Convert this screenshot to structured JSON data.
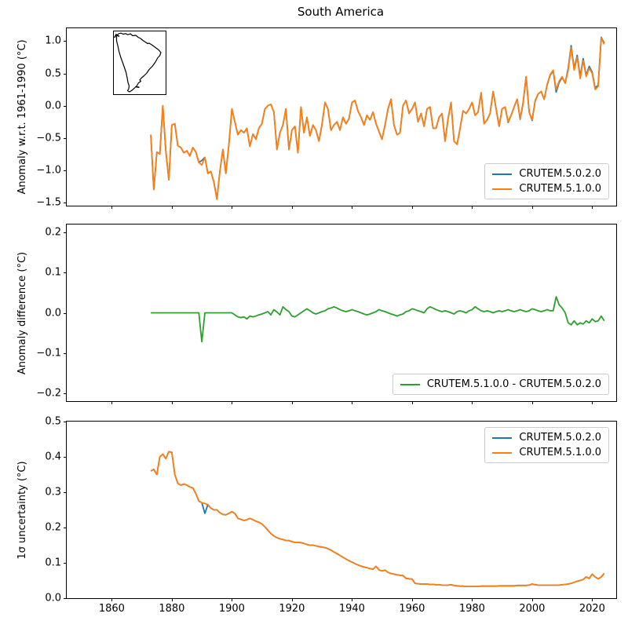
{
  "title": "South America",
  "chart_data": {
    "type": "line",
    "title": "South America",
    "x_years": {
      "start": 1873,
      "end": 2024,
      "step": 1
    },
    "xlim": [
      1845,
      2028
    ],
    "xticks": [
      1860,
      1880,
      1900,
      1920,
      1940,
      1960,
      1980,
      2000,
      2020
    ],
    "xtick_labels": [
      "1860",
      "1880",
      "1900",
      "1920",
      "1940",
      "1960",
      "1980",
      "2000",
      "2020"
    ],
    "grid": false,
    "panels": [
      {
        "ylabel": "Anomaly w.r.t. 1961-1990 (°C)",
        "ylim": [
          -1.55,
          1.2
        ],
        "yticks": [
          1.0,
          0.5,
          0.0,
          -0.5,
          -1.0,
          -1.5
        ],
        "ytick_labels": [
          "1.0",
          "0.5",
          "0.0",
          "−0.5",
          "−1.0",
          "−1.5"
        ],
        "show_xtick_labels": false,
        "legend": {
          "position": "lower-right",
          "entries": [
            {
              "label": "CRUTEM.5.0.2.0",
              "color": "#1f77b4"
            },
            {
              "label": "CRUTEM.5.1.0.0",
              "color": "#ff7f0e"
            }
          ]
        },
        "series": [
          {
            "key": "anomaly_crutem_5_0_2_0",
            "color": "#1f77b4"
          },
          {
            "key": "anomaly_crutem_5_1_0_0",
            "color": "#ff7f0e"
          }
        ]
      },
      {
        "ylabel": "Anomaly difference (°C)",
        "ylim": [
          -0.22,
          0.22
        ],
        "yticks": [
          0.2,
          0.1,
          0.0,
          -0.1,
          -0.2
        ],
        "ytick_labels": [
          "0.2",
          "0.1",
          "0.0",
          "−0.1",
          "−0.2"
        ],
        "show_xtick_labels": false,
        "legend": {
          "position": "lower-right",
          "entries": [
            {
              "label": "CRUTEM.5.1.0.0 - CRUTEM.5.0.2.0",
              "color": "#2ca02c"
            }
          ]
        },
        "series": [
          {
            "key": "difference_5_1_minus_5_0_2",
            "color": "#2ca02c"
          }
        ]
      },
      {
        "ylabel": "1σ uncertainty (°C)",
        "ylim": [
          0.0,
          0.5
        ],
        "yticks": [
          0.5,
          0.4,
          0.3,
          0.2,
          0.1,
          0.0
        ],
        "ytick_labels": [
          "0.5",
          "0.4",
          "0.3",
          "0.2",
          "0.1",
          "0.0"
        ],
        "show_xtick_labels": true,
        "legend": {
          "position": "upper-right",
          "entries": [
            {
              "label": "CRUTEM.5.0.2.0",
              "color": "#1f77b4"
            },
            {
              "label": "CRUTEM.5.1.0.0",
              "color": "#ff7f0e"
            }
          ]
        },
        "series": [
          {
            "key": "uncertainty_crutem_5_0_2_0",
            "color": "#1f77b4"
          },
          {
            "key": "uncertainty_crutem_5_1_0_0",
            "color": "#ff7f0e"
          }
        ]
      }
    ],
    "values": {
      "anomaly_crutem_5_0_2_0": [
        -0.45,
        -1.3,
        -0.72,
        -0.75,
        0.0,
        -0.7,
        -1.15,
        -0.3,
        -0.28,
        -0.62,
        -0.65,
        -0.73,
        -0.7,
        -0.78,
        -0.65,
        -0.72,
        -0.88,
        -0.85,
        -0.8,
        -1.05,
        -1.02,
        -1.18,
        -1.45,
        -1.02,
        -0.68,
        -1.05,
        -0.6,
        -0.05,
        -0.25,
        -0.45,
        -0.38,
        -0.42,
        -0.35,
        -0.63,
        -0.44,
        -0.52,
        -0.35,
        -0.28,
        -0.05,
        0.0,
        0.02,
        -0.1,
        -0.68,
        -0.42,
        -0.3,
        -0.05,
        -0.68,
        -0.38,
        -0.32,
        -0.73,
        -0.02,
        -0.42,
        -0.18,
        -0.47,
        -0.3,
        -0.38,
        -0.55,
        -0.3,
        0.05,
        -0.05,
        -0.38,
        -0.3,
        -0.25,
        -0.38,
        -0.18,
        -0.28,
        -0.2,
        0.05,
        0.08,
        -0.08,
        -0.18,
        -0.3,
        -0.15,
        -0.22,
        -0.1,
        -0.28,
        -0.4,
        -0.52,
        -0.3,
        -0.05,
        0.1,
        -0.3,
        -0.45,
        -0.42,
        0.0,
        0.08,
        -0.12,
        -0.05,
        0.05,
        -0.25,
        -0.12,
        -0.32,
        -0.05,
        -0.02,
        -0.35,
        -0.35,
        -0.18,
        -0.12,
        -0.55,
        -0.2,
        0.05,
        -0.55,
        -0.6,
        -0.35,
        -0.08,
        -0.12,
        -0.05,
        0.05,
        -0.15,
        -0.1,
        0.2,
        -0.28,
        -0.22,
        -0.12,
        0.22,
        -0.05,
        -0.32,
        -0.05,
        -0.02,
        -0.26,
        -0.15,
        -0.02,
        0.1,
        -0.21,
        0.04,
        0.45,
        -0.1,
        -0.23,
        0.07,
        0.18,
        0.22,
        0.1,
        0.32,
        0.47,
        0.54,
        0.21,
        0.36,
        0.44,
        0.35,
        0.58,
        0.93,
        0.57,
        0.78,
        0.45,
        0.73,
        0.47,
        0.61,
        0.52,
        0.27,
        0.32,
        1.06,
        0.97
      ],
      "anomaly_crutem_5_1_0_0": [
        -0.45,
        -1.3,
        -0.72,
        -0.75,
        0.0,
        -0.7,
        -1.15,
        -0.3,
        -0.28,
        -0.62,
        -0.65,
        -0.73,
        -0.7,
        -0.78,
        -0.65,
        -0.72,
        -0.88,
        -0.92,
        -0.8,
        -1.05,
        -1.02,
        -1.18,
        -1.45,
        -1.02,
        -0.68,
        -1.05,
        -0.6,
        -0.05,
        -0.25,
        -0.45,
        -0.38,
        -0.42,
        -0.35,
        -0.63,
        -0.44,
        -0.52,
        -0.35,
        -0.28,
        -0.05,
        0.0,
        0.02,
        -0.1,
        -0.68,
        -0.42,
        -0.3,
        -0.05,
        -0.68,
        -0.38,
        -0.32,
        -0.73,
        -0.02,
        -0.42,
        -0.18,
        -0.47,
        -0.3,
        -0.38,
        -0.55,
        -0.3,
        0.05,
        -0.05,
        -0.38,
        -0.3,
        -0.25,
        -0.38,
        -0.18,
        -0.28,
        -0.2,
        0.05,
        0.08,
        -0.08,
        -0.18,
        -0.3,
        -0.15,
        -0.22,
        -0.1,
        -0.28,
        -0.4,
        -0.52,
        -0.3,
        -0.05,
        0.1,
        -0.3,
        -0.45,
        -0.42,
        0.0,
        0.08,
        -0.12,
        -0.05,
        0.05,
        -0.25,
        -0.12,
        -0.32,
        -0.05,
        -0.02,
        -0.35,
        -0.35,
        -0.18,
        -0.12,
        -0.55,
        -0.2,
        0.05,
        -0.55,
        -0.6,
        -0.35,
        -0.08,
        -0.12,
        -0.05,
        0.05,
        -0.15,
        -0.1,
        0.2,
        -0.28,
        -0.22,
        -0.12,
        0.22,
        -0.05,
        -0.32,
        -0.05,
        -0.02,
        -0.25,
        -0.15,
        -0.02,
        0.1,
        -0.2,
        0.05,
        0.45,
        -0.1,
        -0.22,
        0.08,
        0.18,
        0.22,
        0.1,
        0.33,
        0.48,
        0.55,
        0.25,
        0.38,
        0.45,
        0.35,
        0.55,
        0.9,
        0.55,
        0.75,
        0.42,
        0.7,
        0.45,
        0.58,
        0.5,
        0.25,
        0.3,
        1.05,
        0.95
      ],
      "difference_5_1_minus_5_0_2": [
        0,
        0,
        0,
        0,
        0,
        0,
        0,
        0,
        0,
        0,
        0,
        0,
        0,
        0,
        0,
        0,
        0,
        -0.072,
        0,
        0,
        0,
        0,
        0,
        0,
        0,
        0,
        0,
        0,
        -0.005,
        -0.01,
        -0.012,
        -0.01,
        -0.015,
        -0.008,
        -0.01,
        -0.008,
        -0.005,
        -0.003,
        0,
        0.003,
        -0.005,
        0.008,
        0.002,
        -0.005,
        0.015,
        0.008,
        0.003,
        -0.008,
        -0.01,
        -0.005,
        0,
        0.005,
        0.01,
        0.005,
        0,
        -0.003,
        0,
        0.003,
        0.005,
        0.01,
        0.012,
        0.015,
        0.012,
        0.008,
        0.005,
        0.003,
        0.005,
        0.008,
        0.005,
        0.003,
        0,
        -0.003,
        -0.005,
        -0.003,
        0,
        0.003,
        0.008,
        0.005,
        0.003,
        0,
        -0.003,
        -0.005,
        -0.008,
        -0.005,
        -0.003,
        0.003,
        0.005,
        0.01,
        0.008,
        0.005,
        0.003,
        0,
        0.01,
        0.015,
        0.012,
        0.008,
        0.005,
        0.003,
        0.005,
        0.003,
        0,
        -0.003,
        0.003,
        0.005,
        0.003,
        0,
        0.005,
        0.008,
        0.015,
        0.01,
        0.005,
        0.003,
        0.005,
        0.003,
        0,
        0.003,
        0.005,
        0.003,
        0.005,
        0.008,
        0.005,
        0.003,
        0.005,
        0.008,
        0.005,
        0.003,
        0.005,
        0.01,
        0.008,
        0.005,
        0.003,
        0.005,
        0.008,
        0.005,
        0.005,
        0.04,
        0.02,
        0.012,
        0,
        -0.025,
        -0.03,
        -0.02,
        -0.03,
        -0.025,
        -0.028,
        -0.02,
        -0.025,
        -0.015,
        -0.022,
        -0.02,
        -0.008,
        -0.02
      ],
      "uncertainty_crutem_5_0_2_0": [
        0.36,
        0.365,
        0.35,
        0.4,
        0.408,
        0.395,
        0.415,
        0.413,
        0.35,
        0.325,
        0.32,
        0.323,
        0.32,
        0.315,
        0.312,
        0.296,
        0.275,
        0.27,
        0.24,
        0.265,
        0.255,
        0.25,
        0.25,
        0.242,
        0.237,
        0.236,
        0.24,
        0.245,
        0.24,
        0.226,
        0.223,
        0.22,
        0.222,
        0.226,
        0.222,
        0.218,
        0.215,
        0.21,
        0.202,
        0.192,
        0.183,
        0.176,
        0.171,
        0.168,
        0.166,
        0.163,
        0.163,
        0.16,
        0.158,
        0.158,
        0.157,
        0.155,
        0.152,
        0.15,
        0.15,
        0.148,
        0.146,
        0.145,
        0.143,
        0.14,
        0.136,
        0.131,
        0.126,
        0.121,
        0.116,
        0.111,
        0.106,
        0.102,
        0.098,
        0.094,
        0.091,
        0.088,
        0.086,
        0.084,
        0.082,
        0.09,
        0.08,
        0.077,
        0.079,
        0.073,
        0.07,
        0.068,
        0.066,
        0.065,
        0.064,
        0.056,
        0.055,
        0.054,
        0.042,
        0.041,
        0.04,
        0.04,
        0.04,
        0.039,
        0.039,
        0.038,
        0.038,
        0.037,
        0.037,
        0.037,
        0.038,
        0.036,
        0.035,
        0.034,
        0.034,
        0.033,
        0.033,
        0.033,
        0.033,
        0.033,
        0.034,
        0.034,
        0.034,
        0.034,
        0.034,
        0.034,
        0.035,
        0.035,
        0.035,
        0.035,
        0.035,
        0.035,
        0.036,
        0.036,
        0.036,
        0.036,
        0.037,
        0.04,
        0.038,
        0.037,
        0.037,
        0.037,
        0.037,
        0.037,
        0.037,
        0.037,
        0.037,
        0.038,
        0.039,
        0.04,
        0.042,
        0.045,
        0.048,
        0.05,
        0.053,
        0.06,
        0.056,
        0.068,
        0.06,
        0.055,
        0.06,
        0.07
      ],
      "uncertainty_crutem_5_1_0_0": [
        0.36,
        0.365,
        0.35,
        0.4,
        0.408,
        0.395,
        0.415,
        0.413,
        0.35,
        0.325,
        0.32,
        0.323,
        0.32,
        0.315,
        0.312,
        0.296,
        0.275,
        0.27,
        0.268,
        0.265,
        0.255,
        0.25,
        0.25,
        0.242,
        0.237,
        0.236,
        0.24,
        0.245,
        0.24,
        0.226,
        0.223,
        0.22,
        0.222,
        0.226,
        0.222,
        0.218,
        0.215,
        0.21,
        0.202,
        0.192,
        0.183,
        0.176,
        0.171,
        0.168,
        0.166,
        0.163,
        0.163,
        0.16,
        0.158,
        0.158,
        0.157,
        0.155,
        0.152,
        0.15,
        0.15,
        0.148,
        0.146,
        0.145,
        0.143,
        0.14,
        0.136,
        0.131,
        0.126,
        0.121,
        0.116,
        0.111,
        0.106,
        0.102,
        0.098,
        0.094,
        0.091,
        0.088,
        0.086,
        0.084,
        0.082,
        0.09,
        0.08,
        0.077,
        0.079,
        0.073,
        0.07,
        0.068,
        0.066,
        0.065,
        0.064,
        0.056,
        0.055,
        0.054,
        0.042,
        0.041,
        0.04,
        0.04,
        0.04,
        0.039,
        0.039,
        0.038,
        0.038,
        0.037,
        0.037,
        0.037,
        0.038,
        0.036,
        0.035,
        0.034,
        0.034,
        0.033,
        0.033,
        0.033,
        0.033,
        0.033,
        0.034,
        0.034,
        0.034,
        0.034,
        0.034,
        0.034,
        0.035,
        0.035,
        0.035,
        0.035,
        0.035,
        0.035,
        0.036,
        0.036,
        0.036,
        0.036,
        0.037,
        0.04,
        0.038,
        0.037,
        0.037,
        0.037,
        0.037,
        0.037,
        0.037,
        0.037,
        0.037,
        0.038,
        0.039,
        0.04,
        0.042,
        0.045,
        0.048,
        0.05,
        0.053,
        0.06,
        0.056,
        0.068,
        0.06,
        0.055,
        0.06,
        0.07
      ]
    }
  },
  "inset_map": {
    "region": "South America coastline outline"
  }
}
